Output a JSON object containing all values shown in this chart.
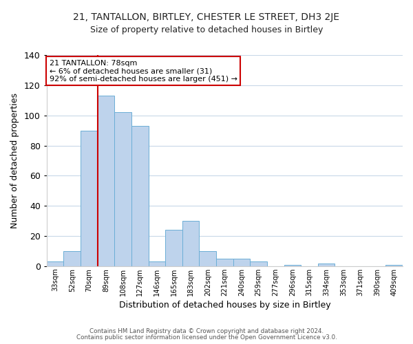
{
  "title": "21, TANTALLON, BIRTLEY, CHESTER LE STREET, DH3 2JE",
  "subtitle": "Size of property relative to detached houses in Birtley",
  "xlabel": "Distribution of detached houses by size in Birtley",
  "ylabel": "Number of detached properties",
  "bar_labels": [
    "33sqm",
    "52sqm",
    "70sqm",
    "89sqm",
    "108sqm",
    "127sqm",
    "146sqm",
    "165sqm",
    "183sqm",
    "202sqm",
    "221sqm",
    "240sqm",
    "259sqm",
    "277sqm",
    "296sqm",
    "315sqm",
    "334sqm",
    "353sqm",
    "371sqm",
    "390sqm",
    "409sqm"
  ],
  "bar_values": [
    3,
    10,
    90,
    113,
    102,
    93,
    3,
    24,
    30,
    10,
    5,
    5,
    3,
    0,
    1,
    0,
    2,
    0,
    0,
    0,
    1
  ],
  "bar_color": "#bed3ec",
  "bar_edge_color": "#6baed6",
  "vline_x_index": 2,
  "vline_color": "#cc0000",
  "annotation_title": "21 TANTALLON: 78sqm",
  "annotation_line1": "← 6% of detached houses are smaller (31)",
  "annotation_line2": "92% of semi-detached houses are larger (451) →",
  "annotation_box_color": "#ffffff",
  "annotation_box_edge": "#cc0000",
  "ylim": [
    0,
    140
  ],
  "yticks": [
    0,
    20,
    40,
    60,
    80,
    100,
    120,
    140
  ],
  "footer1": "Contains HM Land Registry data © Crown copyright and database right 2024.",
  "footer2": "Contains public sector information licensed under the Open Government Licence v3.0.",
  "background_color": "#ffffff",
  "grid_color": "#c8d8e8",
  "title_fontsize": 10,
  "subtitle_fontsize": 9
}
